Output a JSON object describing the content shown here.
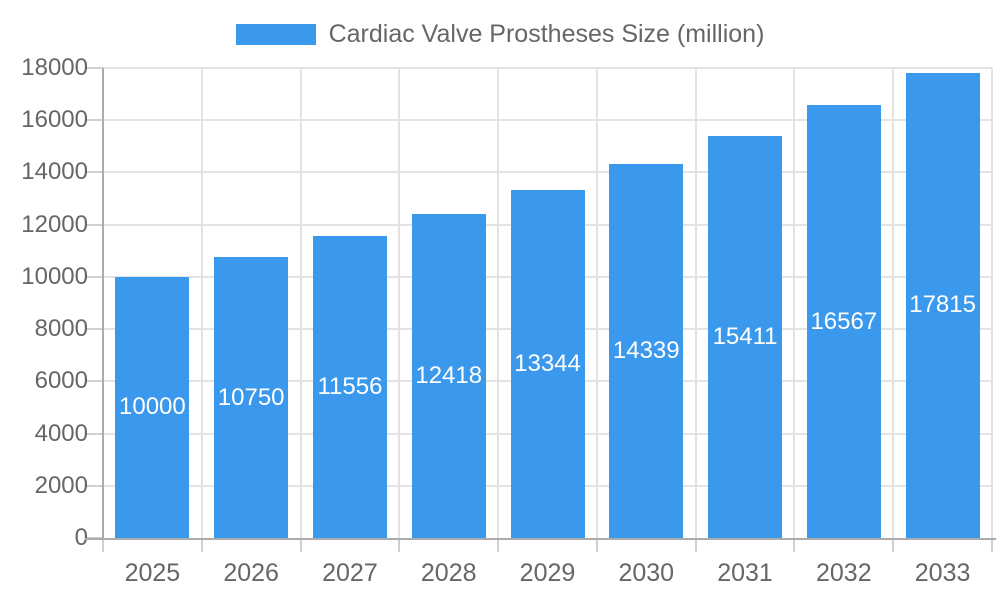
{
  "chart_data": {
    "type": "bar",
    "title": "Cardiac Valve Prostheses Size (million)",
    "categories": [
      "2025",
      "2026",
      "2027",
      "2028",
      "2029",
      "2030",
      "2031",
      "2032",
      "2033"
    ],
    "values": [
      10000,
      10750,
      11556,
      12418,
      13344,
      14339,
      15411,
      16567,
      17815
    ],
    "xlabel": "",
    "ylabel": "",
    "ylim": [
      0,
      18000
    ],
    "y_ticks": [
      0,
      2000,
      4000,
      6000,
      8000,
      10000,
      12000,
      14000,
      16000,
      18000
    ],
    "grid": true,
    "legend_position": "top",
    "bar_value_labels_inside": true,
    "colors": {
      "bar": "#3a99ec",
      "bar_label": "#ffffff",
      "axis_text": "#666666",
      "grid": "#e3e3e3",
      "tick": "#d0d0d0",
      "axis_line": "#ababab",
      "background": "#ffffff"
    }
  }
}
